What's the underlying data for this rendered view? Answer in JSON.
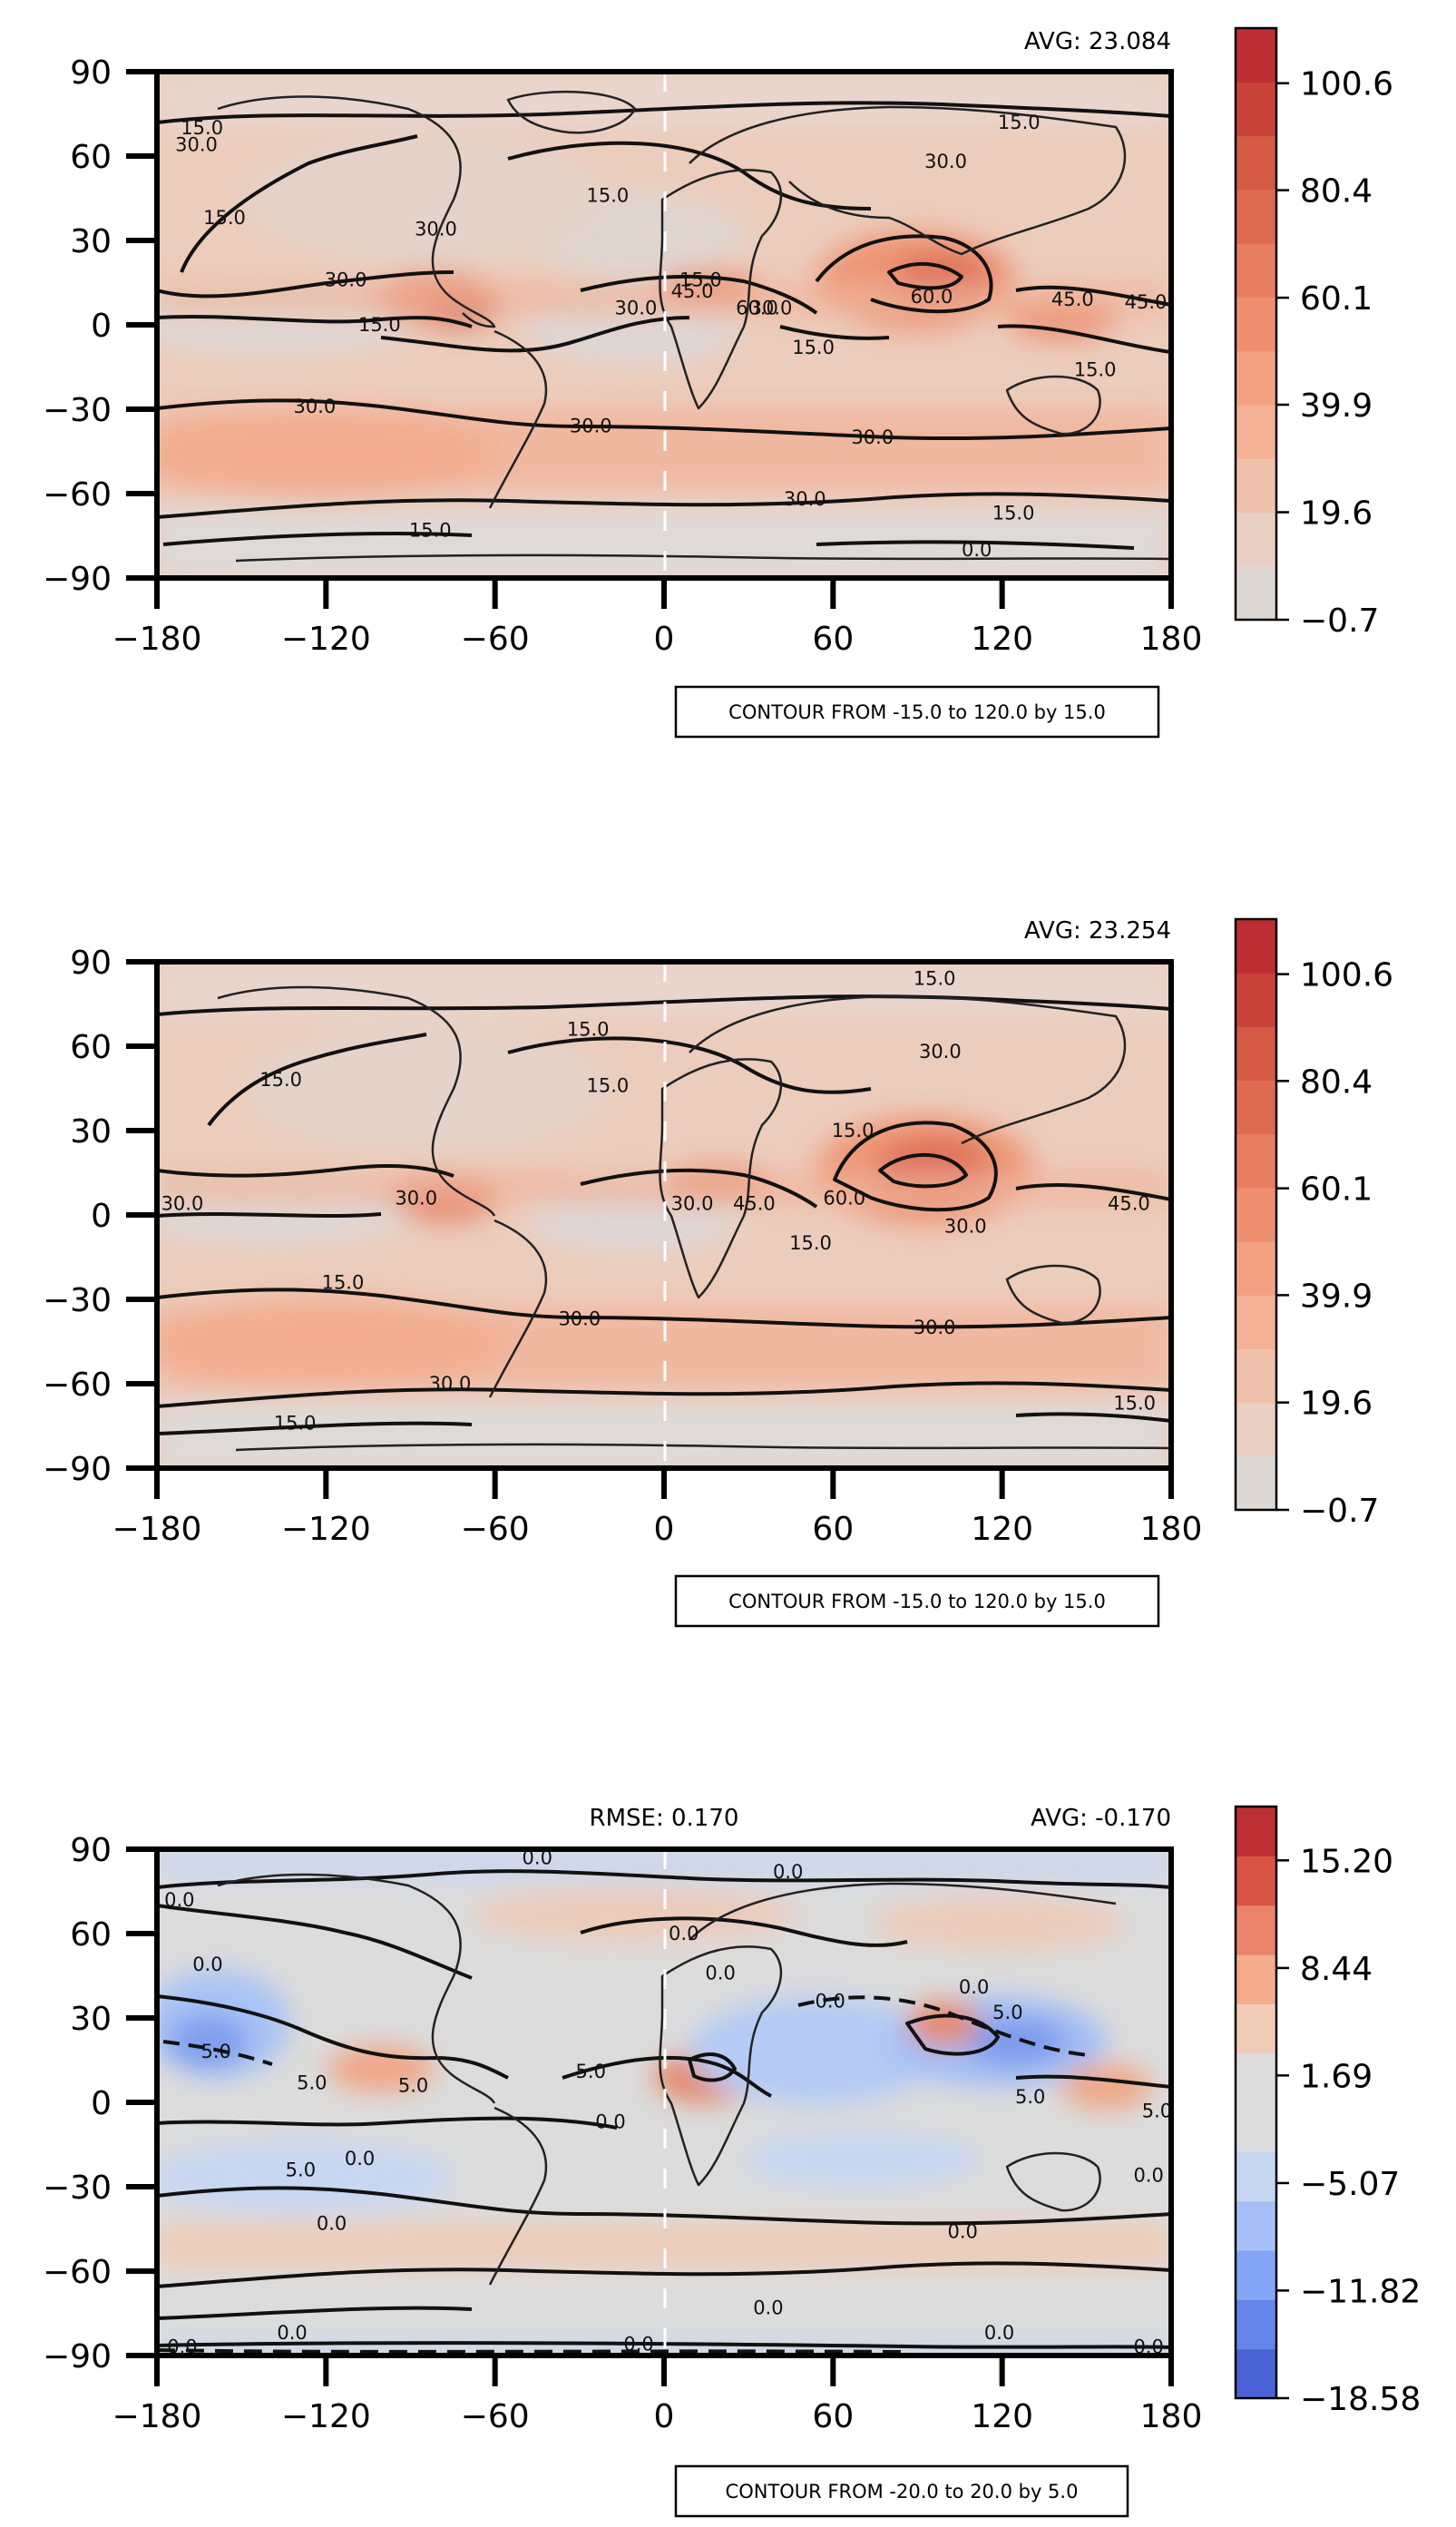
{
  "chart_data": [
    {
      "type": "heatmap",
      "title": "",
      "xlabel": "",
      "ylabel": "",
      "xlim": [
        -180,
        180
      ],
      "ylim": [
        -90,
        90
      ],
      "xticks": [
        "−180",
        "−120",
        "−60",
        "0",
        "60",
        "120",
        "180"
      ],
      "yticks": [
        "90",
        "60",
        "30",
        "0",
        "−30",
        "−60",
        "−90"
      ],
      "stat_right": "AVG: 23.084",
      "stat_left": "",
      "note": "CONTOUR FROM -15.0 to 120.0 by 15.0",
      "colorbar": {
        "ticks": [
          "100.6",
          "80.4",
          "60.1",
          "39.9",
          "19.6",
          "−0.7"
        ],
        "tick_values": [
          100.6,
          80.4,
          60.1,
          39.9,
          19.6,
          -0.7
        ],
        "range": [
          -0.7,
          111.0
        ],
        "colors": [
          "#ddd8d4",
          "#ead0c4",
          "#f0c1ab",
          "#f3b196",
          "#f2a283",
          "#ee9070",
          "#e77f5f",
          "#df6b4e",
          "#d45a43",
          "#c8443a",
          "#bd2d32"
        ]
      },
      "contour_labels": [
        {
          "text": "15.0",
          "lon": -164,
          "lat": 70
        },
        {
          "text": "30.0",
          "lon": -166,
          "lat": 64
        },
        {
          "text": "15.0",
          "lon": 126,
          "lat": 72
        },
        {
          "text": "30.0",
          "lon": 100,
          "lat": 58
        },
        {
          "text": "15.0",
          "lon": -20,
          "lat": 46
        },
        {
          "text": "15.0",
          "lon": -156,
          "lat": 38
        },
        {
          "text": "30.0",
          "lon": -81,
          "lat": 34
        },
        {
          "text": "30.0",
          "lon": -113,
          "lat": 16
        },
        {
          "text": "15.0",
          "lon": 13,
          "lat": 16
        },
        {
          "text": "45.0",
          "lon": 10,
          "lat": 12
        },
        {
          "text": "30.0",
          "lon": -10,
          "lat": 6
        },
        {
          "text": "60.0",
          "lon": 33,
          "lat": 6
        },
        {
          "text": "30.0",
          "lon": 38,
          "lat": 6
        },
        {
          "text": "15.0",
          "lon": -101,
          "lat": 0
        },
        {
          "text": "15.0",
          "lon": 53,
          "lat": -8
        },
        {
          "text": "60.0",
          "lon": 95,
          "lat": 10
        },
        {
          "text": "45.0",
          "lon": 145,
          "lat": 9
        },
        {
          "text": "45.0",
          "lon": 171,
          "lat": 8
        },
        {
          "text": "15.0",
          "lon": 153,
          "lat": -16
        },
        {
          "text": "30.0",
          "lon": -124,
          "lat": -29
        },
        {
          "text": "30.0",
          "lon": -26,
          "lat": -36
        },
        {
          "text": "30.0",
          "lon": 74,
          "lat": -40
        },
        {
          "text": "30.0",
          "lon": 50,
          "lat": -62
        },
        {
          "text": "15.0",
          "lon": 124,
          "lat": -67
        },
        {
          "text": "15.0",
          "lon": -83,
          "lat": -73
        },
        {
          "text": "0.0",
          "lon": 111,
          "lat": -80
        }
      ]
    },
    {
      "type": "heatmap",
      "title": "",
      "xlabel": "",
      "ylabel": "",
      "xlim": [
        -180,
        180
      ],
      "ylim": [
        -90,
        90
      ],
      "xticks": [
        "−180",
        "−120",
        "−60",
        "0",
        "60",
        "120",
        "180"
      ],
      "yticks": [
        "90",
        "60",
        "30",
        "0",
        "−30",
        "−60",
        "−90"
      ],
      "stat_right": "AVG: 23.254",
      "stat_left": "",
      "note": "CONTOUR FROM -15.0 to 120.0 by 15.0",
      "colorbar": {
        "ticks": [
          "100.6",
          "80.4",
          "60.1",
          "39.9",
          "19.6",
          "−0.7"
        ],
        "tick_values": [
          100.6,
          80.4,
          60.1,
          39.9,
          19.6,
          -0.7
        ],
        "range": [
          -0.7,
          111.0
        ],
        "colors": [
          "#ddd8d4",
          "#ead0c4",
          "#f0c1ab",
          "#f3b196",
          "#f2a283",
          "#ee9070",
          "#e77f5f",
          "#df6b4e",
          "#d45a43",
          "#c8443a",
          "#bd2d32"
        ]
      },
      "contour_labels": [
        {
          "text": "15.0",
          "lon": 96,
          "lat": 84
        },
        {
          "text": "15.0",
          "lon": -27,
          "lat": 66
        },
        {
          "text": "30.0",
          "lon": 98,
          "lat": 58
        },
        {
          "text": "15.0",
          "lon": -136,
          "lat": 48
        },
        {
          "text": "15.0",
          "lon": -20,
          "lat": 46
        },
        {
          "text": "15.0",
          "lon": 67,
          "lat": 30
        },
        {
          "text": "30.0",
          "lon": -88,
          "lat": 6
        },
        {
          "text": "30.0",
          "lon": -171,
          "lat": 4
        },
        {
          "text": "30.0",
          "lon": 10,
          "lat": 4
        },
        {
          "text": "45.0",
          "lon": 32,
          "lat": 4
        },
        {
          "text": "60.0",
          "lon": 64,
          "lat": 6
        },
        {
          "text": "30.0",
          "lon": 107,
          "lat": -4
        },
        {
          "text": "45.0",
          "lon": 165,
          "lat": 4
        },
        {
          "text": "15.0",
          "lon": 52,
          "lat": -10
        },
        {
          "text": "15.0",
          "lon": -114,
          "lat": -24
        },
        {
          "text": "30.0",
          "lon": -30,
          "lat": -37
        },
        {
          "text": "30.0",
          "lon": 96,
          "lat": -40
        },
        {
          "text": "30.0",
          "lon": -76,
          "lat": -60
        },
        {
          "text": "15.0",
          "lon": -131,
          "lat": -74
        },
        {
          "text": "15.0",
          "lon": 167,
          "lat": -67
        }
      ]
    },
    {
      "type": "heatmap",
      "title": "",
      "xlabel": "",
      "ylabel": "",
      "xlim": [
        -180,
        180
      ],
      "ylim": [
        -90,
        90
      ],
      "xticks": [
        "−180",
        "−120",
        "−60",
        "0",
        "60",
        "120",
        "180"
      ],
      "yticks": [
        "90",
        "60",
        "30",
        "0",
        "−30",
        "−60",
        "−90"
      ],
      "stat_right": "AVG: -0.170",
      "stat_left": "RMSE: 0.170",
      "note": "CONTOUR FROM -20.0 to 20.0 by 5.0",
      "colorbar": {
        "ticks": [
          "15.20",
          "8.44",
          "1.69",
          "−5.07",
          "−11.82",
          "−18.58"
        ],
        "tick_values": [
          15.2,
          8.44,
          1.69,
          -5.07,
          -11.82,
          -18.58
        ],
        "range": [
          -18.58,
          18.58
        ],
        "colors": [
          "#4a63d7",
          "#6585ea",
          "#84a4f5",
          "#a6c0f7",
          "#c6d6f1",
          "#dcdcdc",
          "#dcdcdc",
          "#f0ccb8",
          "#f4ac8c",
          "#e9836a",
          "#d95445",
          "#bd2f33"
        ]
      },
      "contour_labels": [
        {
          "text": "0.0",
          "lon": -45,
          "lat": 87
        },
        {
          "text": "0.0",
          "lon": 44,
          "lat": 82
        },
        {
          "text": "0.0",
          "lon": -172,
          "lat": 72
        },
        {
          "text": "0.0",
          "lon": 7,
          "lat": 60
        },
        {
          "text": "0.0",
          "lon": -162,
          "lat": 49
        },
        {
          "text": "0.0",
          "lon": 20,
          "lat": 46
        },
        {
          "text": "0.0",
          "lon": 110,
          "lat": 41
        },
        {
          "text": "0.0",
          "lon": 59,
          "lat": 36
        },
        {
          "text": "5.0",
          "lon": 122,
          "lat": 32
        },
        {
          "text": "5.0",
          "lon": -159,
          "lat": 18
        },
        {
          "text": "5.0",
          "lon": -125,
          "lat": 7
        },
        {
          "text": "5.0",
          "lon": -89,
          "lat": 6
        },
        {
          "text": "5.0",
          "lon": -26,
          "lat": 11
        },
        {
          "text": "0.0",
          "lon": -19,
          "lat": -7
        },
        {
          "text": "5.0",
          "lon": 130,
          "lat": 2
        },
        {
          "text": "5.0",
          "lon": 175,
          "lat": -3
        },
        {
          "text": "0.0",
          "lon": -108,
          "lat": -20
        },
        {
          "text": "5.0",
          "lon": -129,
          "lat": -24
        },
        {
          "text": "0.0",
          "lon": 172,
          "lat": -26
        },
        {
          "text": "0.0",
          "lon": -118,
          "lat": -43
        },
        {
          "text": "0.0",
          "lon": 106,
          "lat": -46
        },
        {
          "text": "0.0",
          "lon": 37,
          "lat": -73
        },
        {
          "text": "0.0",
          "lon": -132,
          "lat": -82
        },
        {
          "text": "0.0",
          "lon": -9,
          "lat": -86
        },
        {
          "text": "0.0",
          "lon": 119,
          "lat": -82
        },
        {
          "text": "0.0",
          "lon": -171,
          "lat": -87
        },
        {
          "text": "0.0",
          "lon": 172,
          "lat": -87
        }
      ]
    }
  ]
}
